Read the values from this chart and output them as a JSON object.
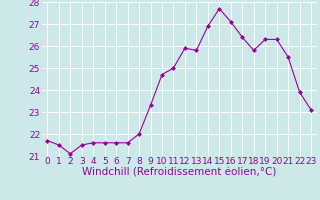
{
  "x": [
    0,
    1,
    2,
    3,
    4,
    5,
    6,
    7,
    8,
    9,
    10,
    11,
    12,
    13,
    14,
    15,
    16,
    17,
    18,
    19,
    20,
    21,
    22,
    23
  ],
  "y": [
    21.7,
    21.5,
    21.1,
    21.5,
    21.6,
    21.6,
    21.6,
    21.6,
    22.0,
    23.3,
    24.7,
    25.0,
    25.9,
    25.8,
    26.9,
    27.7,
    27.1,
    26.4,
    25.8,
    26.3,
    26.3,
    25.5,
    23.9,
    23.1
  ],
  "line_color": "#990099",
  "marker": "D",
  "marker_size": 2.0,
  "bg_color": "#cce8e8",
  "grid_color": "#ffffff",
  "xlabel": "Windchill (Refroidissement éolien,°C)",
  "xlabel_color": "#990099",
  "xlabel_fontsize": 7.5,
  "tick_color": "#990099",
  "tick_fontsize": 6.5,
  "ylim": [
    21,
    28
  ],
  "yticks": [
    21,
    22,
    23,
    24,
    25,
    26,
    27,
    28
  ],
  "xlim": [
    -0.5,
    23.5
  ],
  "xticks": [
    0,
    1,
    2,
    3,
    4,
    5,
    6,
    7,
    8,
    9,
    10,
    11,
    12,
    13,
    14,
    15,
    16,
    17,
    18,
    19,
    20,
    21,
    22,
    23
  ]
}
